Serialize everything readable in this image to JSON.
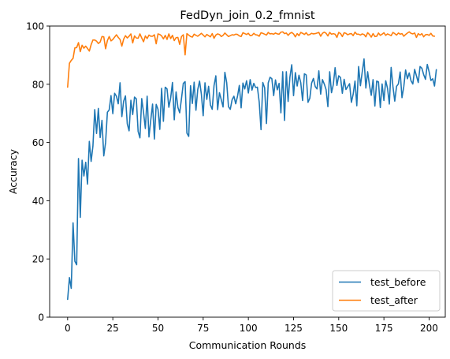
{
  "chart_data": {
    "type": "line",
    "title": "FedDyn_join_0.2_fmnist",
    "xlabel": "Communication Rounds",
    "ylabel": "Accuracy",
    "xlim": [
      -9.95,
      208.95
    ],
    "ylim": [
      0,
      100
    ],
    "xticks": [
      0,
      25,
      50,
      75,
      100,
      125,
      150,
      175,
      200
    ],
    "yticks": [
      0,
      20,
      40,
      60,
      80,
      100
    ],
    "grid": false,
    "legend_position": "lower-right",
    "series": [
      {
        "name": "test_before",
        "color": "#1f77b4",
        "values": [
          6.1,
          13.6,
          9.9,
          32.4,
          19.2,
          18.0,
          54.5,
          34.3,
          53.9,
          48.5,
          53.2,
          45.7,
          60.4,
          53.5,
          58.8,
          71.3,
          63.1,
          71.7,
          61.7,
          67.6,
          55.4,
          60.0,
          70.4,
          71.2,
          76.1,
          69.9,
          76.9,
          75.9,
          73.3,
          80.5,
          68.9,
          74.2,
          76.0,
          66.4,
          64.0,
          74.5,
          69.6,
          75.6,
          75.0,
          63.8,
          61.6,
          75.1,
          70.3,
          64.8,
          75.9,
          61.9,
          67.7,
          73.2,
          61.2,
          73.1,
          71.4,
          64.5,
          78.6,
          67.3,
          79.0,
          78.4,
          72.1,
          75.3,
          80.6,
          67.8,
          77.4,
          72.1,
          70.2,
          75.1,
          80.3,
          80.9,
          63.2,
          62.1,
          79.5,
          73.4,
          80.7,
          71.1,
          78.2,
          81.1,
          76.6,
          69.2,
          80.5,
          74.8,
          79.3,
          72.9,
          71.4,
          79.5,
          82.9,
          71.3,
          77.1,
          74.7,
          72.2,
          84.1,
          80.6,
          72.3,
          71.4,
          74.7,
          75.9,
          73.3,
          75.9,
          79.6,
          71.9,
          80.4,
          78.4,
          81.2,
          77.0,
          81.6,
          78.0,
          80.3,
          78.9,
          79.0,
          73.9,
          64.4,
          80.6,
          78.8,
          66.5,
          80.5,
          82.4,
          81.9,
          76.1,
          81.5,
          78.1,
          80.3,
          70.2,
          84.3,
          67.6,
          84.3,
          74.1,
          82.5,
          86.7,
          76.1,
          84.0,
          79.4,
          83.1,
          80.5,
          74.4,
          83.6,
          83.2,
          73.8,
          75.2,
          80.4,
          82.0,
          79.2,
          78.4,
          84.6,
          76.6,
          81.6,
          80.1,
          78.2,
          72.3,
          84.3,
          77.1,
          79.9,
          85.7,
          79.6,
          82.9,
          82.3,
          76.9,
          81.7,
          78.2,
          79.2,
          80.2,
          73.8,
          76.6,
          81.1,
          72.6,
          86.1,
          79.5,
          84.2,
          88.7,
          78.7,
          84.3,
          79.7,
          76.2,
          81.6,
          72.5,
          81.1,
          80.8,
          72.0,
          80.1,
          74.4,
          81.2,
          78.6,
          73.2,
          85.8,
          79.2,
          74.2,
          79.3,
          80.1,
          84.2,
          75.4,
          79.2,
          84.9,
          81.9,
          83.9,
          81.2,
          80.1,
          85.1,
          82.9,
          80.6,
          86.1,
          85.5,
          83.3,
          81.7,
          86.8,
          84.3,
          81.3,
          81.9,
          79.4,
          85.0
        ],
        "values_note": ""
      },
      {
        "name": "test_after",
        "color": "#ff7f0e",
        "values": [
          79.0,
          87.2,
          88.2,
          88.9,
          92.5,
          92.6,
          94.3,
          91.2,
          93.4,
          92.4,
          93.1,
          92.3,
          91.4,
          93.6,
          95.2,
          95.2,
          94.8,
          94.0,
          94.5,
          96.4,
          96.3,
          92.2,
          95.0,
          96.4,
          94.9,
          95.4,
          96.2,
          97.0,
          96.1,
          95.4,
          93.1,
          95.5,
          96.7,
          95.9,
          96.5,
          97.3,
          94.2,
          96.6,
          95.9,
          95.8,
          97.3,
          95.9,
          94.6,
          96.6,
          95.7,
          96.9,
          96.5,
          96.5,
          97.0,
          93.9,
          97.3,
          97.1,
          96.6,
          95.6,
          96.8,
          95.4,
          97.3,
          95.7,
          96.8,
          95.0,
          96.0,
          96.1,
          93.7,
          96.4,
          97.0,
          90.1,
          97.4,
          96.9,
          96.4,
          96.2,
          97.2,
          96.8,
          96.5,
          97.0,
          97.5,
          96.9,
          96.3,
          97.1,
          96.7,
          96.3,
          97.4,
          95.8,
          96.9,
          97.3,
          97.1,
          96.4,
          96.8,
          97.6,
          97.0,
          96.4,
          96.7,
          97.0,
          96.9,
          97.2,
          97.1,
          96.6,
          96.4,
          97.7,
          97.4,
          97.1,
          97.5,
          96.7,
          96.8,
          97.5,
          97.0,
          96.9,
          96.5,
          97.7,
          97.5,
          97.2,
          96.9,
          97.8,
          97.3,
          97.4,
          97.2,
          97.6,
          97.3,
          97.2,
          97.9,
          98.0,
          97.4,
          97.6,
          96.8,
          97.5,
          97.8,
          97.3,
          96.3,
          97.4,
          96.7,
          97.8,
          97.5,
          97.1,
          97.7,
          96.9,
          97.1,
          97.5,
          97.3,
          97.4,
          97.6,
          97.8,
          96.5,
          97.5,
          97.9,
          97.5,
          96.6,
          97.8,
          97.2,
          97.4,
          97.2,
          96.1,
          97.8,
          97.4,
          96.4,
          97.7,
          97.5,
          97.0,
          97.3,
          97.4,
          96.7,
          97.9,
          97.2,
          97.2,
          96.9,
          97.3,
          97.1,
          96.3,
          97.7,
          97.1,
          96.2,
          97.4,
          96.4,
          96.5,
          97.6,
          96.8,
          97.2,
          97.7,
          96.8,
          97.3,
          97.0,
          96.7,
          97.8,
          97.4,
          96.9,
          97.6,
          97.2,
          97.4,
          96.5,
          97.1,
          97.6,
          98.0,
          97.5,
          97.3,
          97.6,
          96.1,
          97.4,
          96.9,
          97.4,
          96.3,
          97.0,
          97.1,
          96.8,
          97.5,
          96.6,
          96.5
        ]
      }
    ]
  }
}
